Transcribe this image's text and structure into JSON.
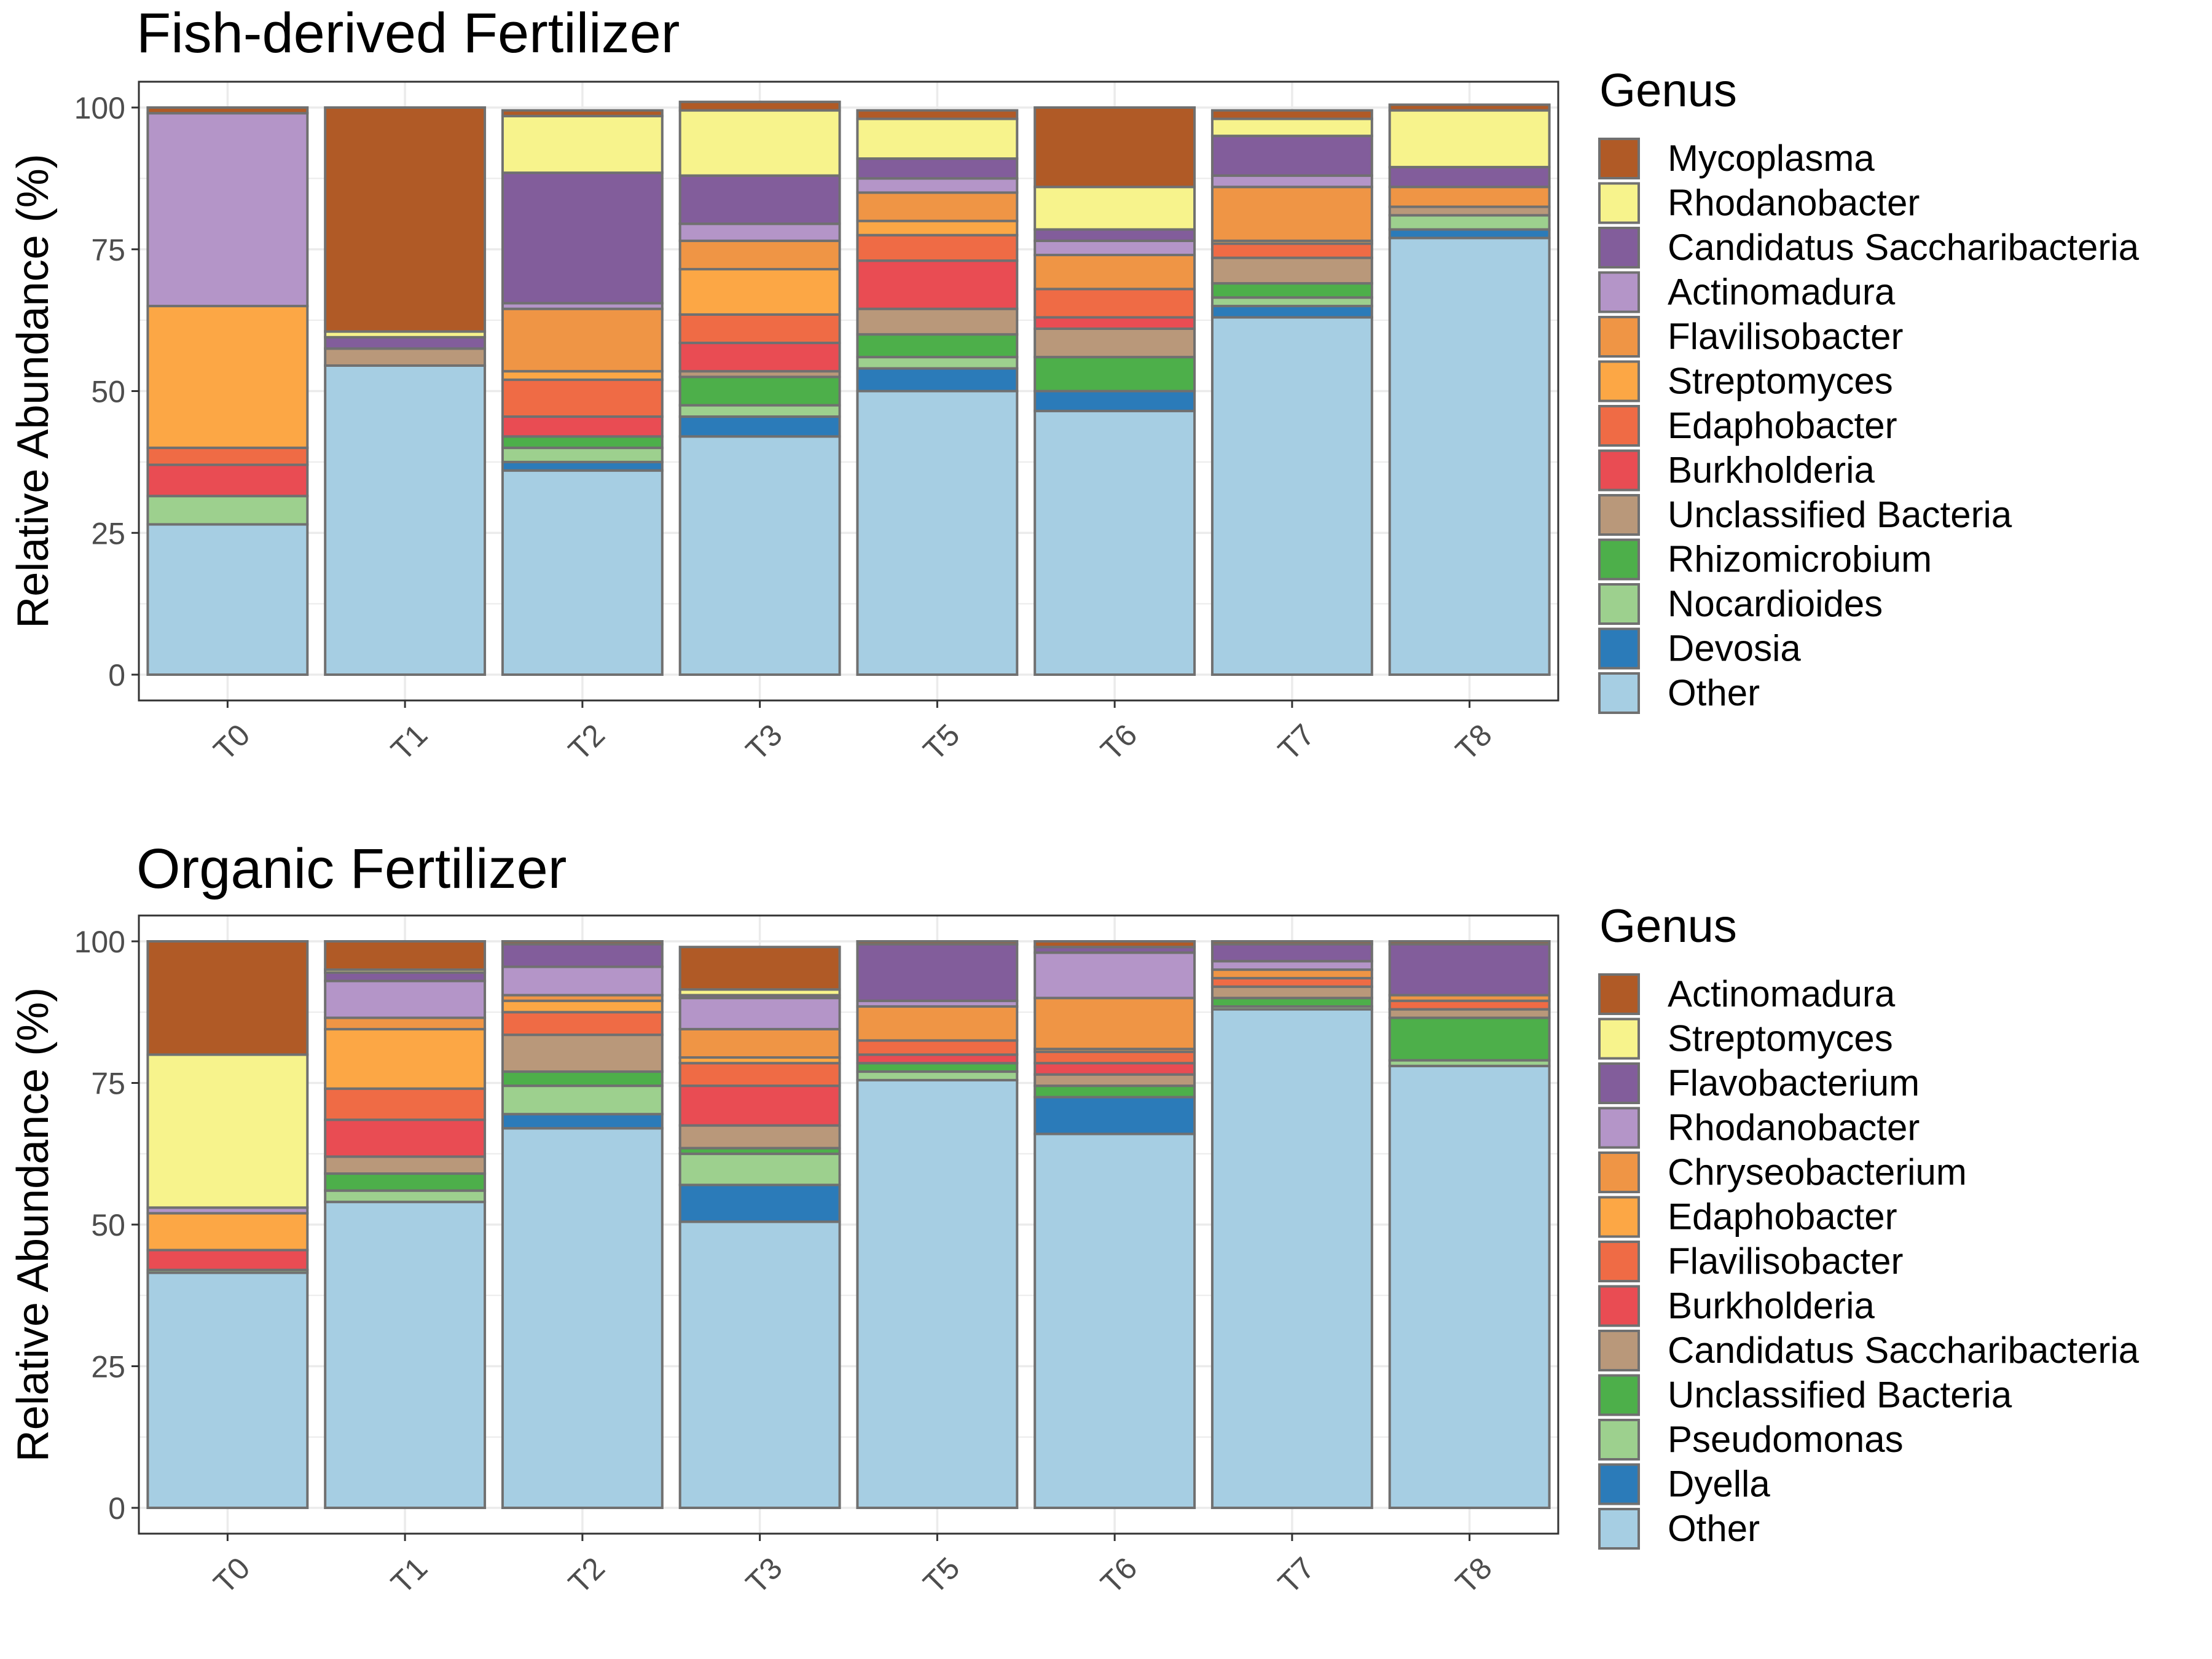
{
  "panels": [
    {
      "title": "Fish-derived Fertilizer",
      "ylabel": "Relative Abundance (%)",
      "legend_title": "Genus"
    },
    {
      "title": "Organic Fertilizer",
      "ylabel": "Relative Abundance (%)",
      "legend_title": "Genus"
    }
  ],
  "chart_data": [
    {
      "type": "bar",
      "stacked": true,
      "title": "Fish-derived Fertilizer",
      "ylabel": "Relative Abundance (%)",
      "ylim": [
        0,
        100
      ],
      "yticks": [
        0,
        25,
        50,
        75,
        100
      ],
      "grid": true,
      "legend_title": "Genus",
      "legend_position": "right",
      "categories": [
        "T0",
        "T1",
        "T2",
        "T3",
        "T5",
        "T6",
        "T7",
        "T8"
      ],
      "series": [
        {
          "name": "Other",
          "color": "#a6cee3",
          "values": [
            26.5,
            54.5,
            36,
            42,
            50,
            46.5,
            63,
            77
          ]
        },
        {
          "name": "Devosia",
          "color": "#2b7bb9",
          "values": [
            0,
            0,
            1.5,
            3.5,
            4,
            3.5,
            2,
            1.5
          ]
        },
        {
          "name": "Nocardioides",
          "color": "#9dd08e",
          "values": [
            5,
            0,
            2.5,
            2,
            2,
            0,
            1.5,
            2.5
          ]
        },
        {
          "name": "Rhizomicrobium",
          "color": "#4daf4a",
          "values": [
            0,
            0,
            2,
            5,
            4,
            6,
            2.5,
            0
          ]
        },
        {
          "name": "Unclassified Bacteria",
          "color": "#b9987a",
          "values": [
            0,
            3,
            0,
            1,
            4.5,
            5,
            4.5,
            1.5
          ]
        },
        {
          "name": "Burkholderia",
          "color": "#e94c53",
          "values": [
            5.5,
            0,
            3.5,
            5,
            8.5,
            2,
            0,
            0
          ]
        },
        {
          "name": "Edaphobacter",
          "color": "#ef6b45",
          "values": [
            3,
            0,
            6.5,
            5,
            4.5,
            5,
            2.5,
            0
          ]
        },
        {
          "name": "Streptomyces",
          "color": "#fca745",
          "values": [
            25,
            0,
            1.5,
            8,
            2.5,
            0,
            0.5,
            0
          ]
        },
        {
          "name": "Flavilisobacter",
          "color": "#ef9545",
          "values": [
            0,
            0,
            11,
            5,
            5,
            6,
            9.5,
            3.5
          ]
        },
        {
          "name": "Actinomadura",
          "color": "#b495c8",
          "values": [
            34,
            0,
            1,
            3,
            2.5,
            2.5,
            2,
            0
          ]
        },
        {
          "name": "Candidatus Saccharibacteria",
          "color": "#825d9b",
          "values": [
            0,
            2,
            23,
            8.5,
            3.5,
            2,
            7,
            3.5
          ]
        },
        {
          "name": "Rhodanobacter",
          "color": "#f7f38c",
          "values": [
            0,
            1,
            10,
            11.5,
            7,
            7.5,
            3,
            10
          ]
        },
        {
          "name": "Mycoplasma",
          "color": "#b05a26",
          "values": [
            1,
            39.5,
            1,
            1.5,
            1.5,
            14,
            1.5,
            1
          ]
        }
      ]
    },
    {
      "type": "bar",
      "stacked": true,
      "title": "Organic Fertilizer",
      "ylabel": "Relative Abundance (%)",
      "ylim": [
        0,
        100
      ],
      "yticks": [
        0,
        25,
        50,
        75,
        100
      ],
      "grid": true,
      "legend_title": "Genus",
      "legend_position": "right",
      "categories": [
        "T0",
        "T1",
        "T2",
        "T3",
        "T5",
        "T6",
        "T7",
        "T8"
      ],
      "series": [
        {
          "name": "Other",
          "color": "#a6cee3",
          "values": [
            41.5,
            54,
            67,
            50.5,
            75.5,
            66,
            88,
            78
          ]
        },
        {
          "name": "Dyella",
          "color": "#2b7bb9",
          "values": [
            0,
            0,
            2.5,
            6.5,
            0,
            6.5,
            0,
            0
          ]
        },
        {
          "name": "Pseudomonas",
          "color": "#9dd08e",
          "values": [
            0.5,
            2,
            5,
            5.5,
            1.5,
            0,
            0.5,
            1
          ]
        },
        {
          "name": "Unclassified Bacteria",
          "color": "#4daf4a",
          "values": [
            0,
            3,
            2.5,
            1,
            1.5,
            2,
            1.5,
            7.5
          ]
        },
        {
          "name": "Candidatus Saccharibacteria",
          "color": "#b9987a",
          "values": [
            0,
            3,
            6.5,
            4,
            0,
            2,
            2,
            1.5
          ]
        },
        {
          "name": "Burkholderia",
          "color": "#e94c53",
          "values": [
            3.5,
            6.5,
            0,
            7,
            1.5,
            2,
            0,
            0
          ]
        },
        {
          "name": "Flavilisobacter",
          "color": "#ef6b45",
          "values": [
            0,
            5.5,
            4,
            4,
            2.5,
            2,
            1.5,
            1.5
          ]
        },
        {
          "name": "Edaphobacter",
          "color": "#fca745",
          "values": [
            6.5,
            10.5,
            2,
            1,
            0,
            0.5,
            0,
            0
          ]
        },
        {
          "name": "Chryseobacterium",
          "color": "#ef9545",
          "values": [
            0,
            2,
            1,
            5,
            6,
            9,
            1.5,
            1
          ]
        },
        {
          "name": "Rhodanobacter",
          "color": "#b495c8",
          "values": [
            1,
            6.5,
            5,
            5.5,
            1,
            8,
            1.5,
            0
          ]
        },
        {
          "name": "Flavobacterium",
          "color": "#825d9b",
          "values": [
            0,
            1.5,
            4,
            0.5,
            10,
            1,
            3,
            9
          ]
        },
        {
          "name": "Streptomyces",
          "color": "#f7f38c",
          "values": [
            27,
            0.5,
            0,
            1,
            0,
            0,
            0,
            0
          ]
        },
        {
          "name": "Actinomadura",
          "color": "#b05a26",
          "values": [
            20,
            5,
            0.5,
            7.5,
            0.5,
            1,
            0.5,
            0.5
          ]
        }
      ]
    }
  ]
}
